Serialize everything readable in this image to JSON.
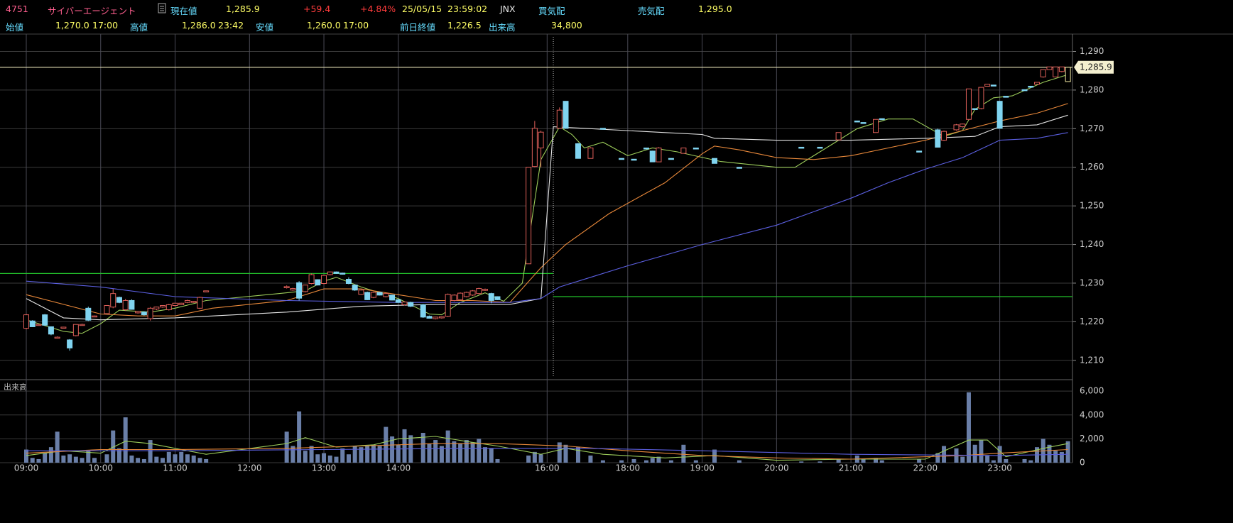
{
  "header": {
    "code": "4751",
    "name": "サイバーエージェント",
    "price_label": "現在値",
    "price": "1,285.9",
    "change": "+59.4",
    "change_pct": "+4.84%",
    "date": "25/05/15",
    "time": "23:59:02",
    "market": "JNX",
    "bid_label": "買気配",
    "ask_label": "売気配",
    "ask": "1,295.0",
    "open_label": "始値",
    "open": "1,270.0",
    "open_time": "17:00",
    "high_label": "高値",
    "high": "1,286.0",
    "high_time": "23:42",
    "low_label": "安値",
    "low": "1,260.0",
    "low_time": "17:00",
    "prev_close_label": "前日終値",
    "prev_close": "1,226.5",
    "volume_label": "出来高",
    "volume": "34,800"
  },
  "chart_data": {
    "type": "candlestick",
    "volume_label": "出来高",
    "up_color": "#e0605a",
    "down_color": "#80d4f0",
    "last_color": "#efe6a0",
    "volume_color": "#6a7fa8",
    "x": [
      "09:00",
      "09:05",
      "09:10",
      "09:15",
      "09:20",
      "09:25",
      "09:30",
      "09:35",
      "09:40",
      "09:45",
      "09:50",
      "09:55",
      "10:05",
      "10:10",
      "10:15",
      "10:20",
      "10:25",
      "10:30",
      "10:35",
      "10:40",
      "10:45",
      "10:50",
      "10:55",
      "11:00",
      "11:05",
      "11:10",
      "11:15",
      "11:20",
      "11:25",
      "12:30",
      "12:35",
      "12:40",
      "12:45",
      "12:50",
      "12:55",
      "13:00",
      "13:05",
      "13:10",
      "13:15",
      "13:20",
      "13:25",
      "13:30",
      "13:35",
      "13:40",
      "13:45",
      "13:50",
      "13:55",
      "14:00",
      "14:05",
      "14:10",
      "14:20",
      "14:25",
      "14:30",
      "14:35",
      "14:40",
      "14:45",
      "14:50",
      "14:55",
      "15:00",
      "15:05",
      "15:10",
      "15:15",
      "15:20",
      "15:45",
      "15:50",
      "15:55",
      "17:05",
      "17:10",
      "17:20",
      "17:30",
      "17:40",
      "17:55",
      "18:05",
      "18:15",
      "18:20",
      "18:25",
      "18:35",
      "18:45",
      "18:55",
      "19:10",
      "19:30",
      "20:20",
      "20:35",
      "20:50",
      "21:05",
      "21:10",
      "21:20",
      "21:25",
      "21:55",
      "22:10",
      "22:15",
      "22:25",
      "22:30",
      "22:35",
      "22:40",
      "22:45",
      "22:50",
      "22:55",
      "23:00",
      "23:05",
      "23:20",
      "23:25",
      "23:30",
      "23:35",
      "23:40",
      "23:45",
      "23:50",
      "23:55"
    ],
    "open": [
      1218.3,
      1220.2,
      1219.1,
      1221.8,
      1218.7,
      1215.9,
      1218.5,
      1215.3,
      1216.4,
      1219.1,
      1223.5,
      1221.4,
      1222.1,
      1223.8,
      1226.3,
      1223.1,
      1225.5,
      1222.3,
      1222.5,
      1220.8,
      1223.3,
      1223.8,
      1223.1,
      1224.2,
      1224.4,
      1225.0,
      1225.0,
      1223.5,
      1227.8,
      1228.8,
      1228.2,
      1230.1,
      1227.8,
      1229.9,
      1230.9,
      1229.9,
      1232.2,
      1232.9,
      1232.6,
      1231.0,
      1229.5,
      1227.1,
      1227.6,
      1226.3,
      1227.6,
      1226.5,
      1226.9,
      1225.7,
      1224.4,
      1225.0,
      1224.4,
      1221.4,
      1220.8,
      1221.0,
      1221.4,
      1225.5,
      1225.7,
      1226.5,
      1226.9,
      1227.3,
      1228.2,
      1227.3,
      1226.5,
      1235.0,
      1260.2,
      1265.0,
      1270.1,
      1277.1,
      1266.1,
      1262.3,
      1270.1,
      1262.3,
      1262.1,
      1265.0,
      1264.2,
      1261.4,
      1262.3,
      1263.6,
      1265.0,
      1262.3,
      1260.0,
      1265.2,
      1265.2,
      1267.1,
      1272.0,
      1271.6,
      1269.0,
      1272.6,
      1264.2,
      1269.7,
      1267.0,
      1269.7,
      1270.5,
      1272.4,
      1275.2,
      1275.2,
      1281.0,
      1281.3,
      1277.1,
      1278.4,
      1280.1,
      1281.0,
      1281.5,
      1283.4,
      1285.3,
      1283.4,
      1284.8,
      1282.2
    ],
    "high": [
      1222.0,
      1220.4,
      1219.5,
      1222.0,
      1218.8,
      1216.2,
      1218.7,
      1215.5,
      1219.3,
      1219.5,
      1223.9,
      1221.6,
      1224.3,
      1228.5,
      1226.5,
      1225.9,
      1225.8,
      1222.8,
      1222.7,
      1223.8,
      1223.9,
      1224.3,
      1224.6,
      1224.9,
      1224.9,
      1225.7,
      1225.4,
      1226.5,
      1228.0,
      1229.4,
      1228.8,
      1230.5,
      1229.6,
      1232.5,
      1231.0,
      1232.2,
      1233.0,
      1233.0,
      1232.7,
      1231.5,
      1229.6,
      1228.4,
      1227.8,
      1227.8,
      1227.7,
      1227.4,
      1227.0,
      1225.9,
      1225.3,
      1225.2,
      1224.6,
      1221.6,
      1221.3,
      1221.4,
      1227.3,
      1227.1,
      1227.6,
      1227.8,
      1228.2,
      1228.8,
      1228.6,
      1227.5,
      1226.6,
      1260.0,
      1272.0,
      1269.5,
      1275.5,
      1277.1,
      1266.3,
      1265.2,
      1270.1,
      1262.3,
      1262.1,
      1265.0,
      1264.3,
      1265.2,
      1262.3,
      1265.0,
      1265.0,
      1262.3,
      1260.0,
      1265.2,
      1265.2,
      1269.0,
      1272.0,
      1271.6,
      1272.4,
      1272.6,
      1264.2,
      1270.0,
      1269.5,
      1271.2,
      1271.3,
      1280.3,
      1275.3,
      1280.7,
      1281.5,
      1281.3,
      1277.1,
      1278.4,
      1280.1,
      1281.0,
      1282.0,
      1285.3,
      1286.0,
      1286.0,
      1286.0,
      1286.0
    ],
    "low": [
      1218.0,
      1218.6,
      1219.0,
      1218.9,
      1216.5,
      1215.7,
      1218.3,
      1212.5,
      1216.2,
      1219.0,
      1220.2,
      1221.2,
      1222.0,
      1223.5,
      1224.8,
      1222.8,
      1223.1,
      1222.1,
      1221.6,
      1220.3,
      1223.0,
      1223.6,
      1222.9,
      1224.0,
      1224.3,
      1224.8,
      1224.9,
      1223.3,
      1227.8,
      1228.6,
      1228.0,
      1225.5,
      1227.6,
      1229.7,
      1229.4,
      1229.7,
      1232.0,
      1232.4,
      1232.2,
      1229.7,
      1228.0,
      1227.0,
      1225.6,
      1226.1,
      1226.8,
      1226.3,
      1225.5,
      1224.9,
      1224.2,
      1223.8,
      1221.0,
      1220.8,
      1220.6,
      1220.8,
      1221.2,
      1225.3,
      1225.5,
      1226.3,
      1226.7,
      1227.1,
      1228.0,
      1224.8,
      1225.6,
      1235.0,
      1260.0,
      1260.0,
      1270.0,
      1270.0,
      1262.3,
      1262.3,
      1270.1,
      1262.3,
      1262.1,
      1265.0,
      1261.4,
      1261.4,
      1262.3,
      1263.6,
      1265.0,
      1261.0,
      1260.0,
      1265.2,
      1265.2,
      1267.1,
      1272.0,
      1271.6,
      1269.0,
      1272.6,
      1264.2,
      1265.2,
      1266.8,
      1269.5,
      1270.3,
      1272.2,
      1275.0,
      1275.0,
      1280.9,
      1281.3,
      1270.1,
      1278.4,
      1280.1,
      1281.0,
      1281.5,
      1283.2,
      1285.3,
      1283.4,
      1284.6,
      1282.2
    ],
    "close": [
      1221.8,
      1218.7,
      1219.3,
      1219.1,
      1216.8,
      1216.0,
      1218.6,
      1213.2,
      1219.3,
      1219.3,
      1220.4,
      1221.5,
      1224.2,
      1227.3,
      1225.0,
      1225.5,
      1223.2,
      1222.7,
      1221.8,
      1223.5,
      1223.8,
      1224.2,
      1224.4,
      1224.8,
      1224.8,
      1225.5,
      1225.3,
      1226.3,
      1228.0,
      1229.1,
      1228.6,
      1226.1,
      1229.5,
      1232.2,
      1229.5,
      1232.0,
      1232.9,
      1232.5,
      1232.3,
      1229.9,
      1228.2,
      1228.2,
      1225.7,
      1227.6,
      1226.9,
      1227.3,
      1225.6,
      1225.0,
      1225.1,
      1224.0,
      1221.2,
      1220.9,
      1221.2,
      1221.3,
      1227.1,
      1226.9,
      1227.4,
      1227.6,
      1228.0,
      1228.6,
      1228.4,
      1225.5,
      1225.7,
      1260.0,
      1270.1,
      1269.1,
      1274.8,
      1270.1,
      1262.3,
      1265.0,
      1270.1,
      1262.3,
      1262.1,
      1265.0,
      1261.4,
      1265.0,
      1262.3,
      1265.0,
      1265.0,
      1261.0,
      1260.0,
      1265.2,
      1265.2,
      1269.0,
      1272.0,
      1271.6,
      1272.4,
      1272.6,
      1264.2,
      1265.2,
      1269.3,
      1271.0,
      1271.2,
      1280.3,
      1275.1,
      1280.7,
      1281.5,
      1281.3,
      1270.1,
      1278.4,
      1280.1,
      1281.0,
      1282.0,
      1285.3,
      1286.0,
      1286.0,
      1286.0,
      1285.9
    ],
    "volume": [
      1100,
      400,
      300,
      800,
      1300,
      2600,
      600,
      700,
      500,
      400,
      1000,
      400,
      700,
      2700,
      1200,
      3800,
      600,
      400,
      300,
      1900,
      500,
      400,
      900,
      700,
      900,
      700,
      600,
      400,
      300,
      2600,
      1400,
      4300,
      1000,
      1400,
      700,
      800,
      600,
      500,
      1200,
      700,
      1400,
      1300,
      1400,
      1500,
      1400,
      3000,
      2200,
      1500,
      2800,
      2300,
      2500,
      1600,
      1900,
      1400,
      2700,
      1800,
      1600,
      1900,
      1700,
      2000,
      1300,
      1200,
      300,
      600,
      900,
      700,
      1700,
      1500,
      1300,
      600,
      200,
      200,
      300,
      200,
      400,
      500,
      200,
      1500,
      200,
      1100,
      200,
      100,
      100,
      300,
      600,
      300,
      400,
      200,
      300,
      800,
      1400,
      1200,
      500,
      5900,
      1500,
      1900,
      600,
      200,
      1400,
      300,
      300,
      200,
      1300,
      2000,
      1500,
      1000,
      900,
      1800
    ],
    "ma_lines": [
      {
        "color": "#9ccc5a",
        "x": [
          "09:00",
          "09:30",
          "09:45",
          "10:00",
          "10:15",
          "10:40",
          "11:00",
          "11:25",
          "12:30",
          "12:45",
          "13:00",
          "13:10",
          "13:30",
          "14:00",
          "14:25",
          "14:35",
          "14:50",
          "15:10",
          "15:20",
          "15:25",
          "15:40",
          "15:55",
          "17:05",
          "17:15",
          "17:25",
          "17:40",
          "18:00",
          "18:20",
          "18:40",
          "19:15",
          "20:00",
          "20:15",
          "20:45",
          "21:05",
          "21:30",
          "21:50",
          "22:15",
          "22:30",
          "22:40",
          "22:55",
          "23:10",
          "23:35",
          "23:55"
        ],
        "values": [
          1220.5,
          1217.5,
          1217,
          1219.5,
          1223,
          1222.5,
          1223.5,
          1225.5,
          1227.5,
          1228,
          1230.5,
          1231.5,
          1229,
          1226,
          1222,
          1221.8,
          1225,
          1227.5,
          1226,
          1225.3,
          1230,
          1262,
          1270.5,
          1268.5,
          1265,
          1266.5,
          1263,
          1265,
          1264,
          1261.5,
          1260,
          1260,
          1266,
          1270,
          1272.5,
          1272.5,
          1268,
          1269.5,
          1275,
          1278,
          1278.5,
          1282,
          1284
        ]
      },
      {
        "color": "#e8883a",
        "x": [
          "09:00",
          "09:30",
          "10:00",
          "10:30",
          "11:00",
          "11:30",
          "12:30",
          "13:00",
          "13:30",
          "14:00",
          "14:30",
          "15:00",
          "15:30",
          "15:55",
          "17:10",
          "17:45",
          "18:30",
          "19:00",
          "19:10",
          "19:30",
          "20:00",
          "20:30",
          "21:00",
          "21:30",
          "22:00",
          "22:30",
          "23:00",
          "23:30",
          "23:55"
        ],
        "values": [
          1227,
          1224.5,
          1222,
          1221.5,
          1221.5,
          1223.5,
          1225.5,
          1228.5,
          1228.5,
          1227,
          1225.5,
          1225.5,
          1225,
          1234,
          1240,
          1248,
          1256,
          1263.5,
          1265.5,
          1264.5,
          1262.5,
          1262,
          1263,
          1265,
          1267,
          1269.5,
          1272,
          1274,
          1276.5
        ]
      },
      {
        "color": "#e4e4e4",
        "x": [
          "09:00",
          "09:30",
          "10:00",
          "11:00",
          "12:30",
          "13:30",
          "14:30",
          "15:30",
          "15:55",
          "17:00",
          "17:30",
          "18:30",
          "19:00",
          "19:10",
          "20:00",
          "21:00",
          "22:00",
          "22:40",
          "23:00",
          "23:30",
          "23:55"
        ],
        "values": [
          1226,
          1221,
          1220.5,
          1221,
          1222.5,
          1224,
          1224.5,
          1224.5,
          1226,
          1270.5,
          1270,
          1269,
          1268.5,
          1267.5,
          1267,
          1267,
          1267.5,
          1268,
          1270.5,
          1271,
          1273.5
        ]
      },
      {
        "color": "#5b5fe0",
        "x": [
          "09:00",
          "10:00",
          "11:00",
          "12:30",
          "14:00",
          "15:30",
          "15:55",
          "17:05",
          "17:30",
          "18:00",
          "19:00",
          "20:00",
          "21:00",
          "21:30",
          "22:00",
          "22:30",
          "23:00",
          "23:30",
          "23:55"
        ],
        "values": [
          1230.5,
          1229,
          1226.5,
          1225.5,
          1225,
          1225,
          1226,
          1229,
          1231.5,
          1234.5,
          1240,
          1245,
          1252,
          1256,
          1259.5,
          1262.5,
          1267,
          1267.5,
          1269
        ]
      }
    ],
    "volume_ma_lines": [
      {
        "color": "#9ccc5a",
        "x": [
          "09:00",
          "09:30",
          "10:00",
          "10:20",
          "10:40",
          "11:00",
          "11:25",
          "12:30",
          "12:45",
          "13:10",
          "13:40",
          "14:00",
          "14:30",
          "15:00",
          "15:20",
          "15:55",
          "17:10",
          "17:40",
          "18:30",
          "19:10",
          "20:00",
          "21:00",
          "22:00",
          "22:35",
          "22:50",
          "23:05",
          "23:40",
          "23:55"
        ],
        "values": [
          600,
          1000,
          800,
          1800,
          1600,
          1200,
          700,
          1600,
          2100,
          1300,
          1500,
          2000,
          2200,
          1700,
          1400,
          700,
          1200,
          700,
          400,
          600,
          200,
          300,
          300,
          1900,
          1900,
          500,
          1300,
          1600
        ]
      },
      {
        "color": "#e8883a",
        "x": [
          "09:00",
          "10:00",
          "11:00",
          "12:30",
          "13:30",
          "14:30",
          "15:20",
          "17:10",
          "18:00",
          "19:00",
          "20:00",
          "21:00",
          "22:30",
          "23:00",
          "23:55"
        ],
        "values": [
          800,
          1100,
          1100,
          1200,
          1400,
          1600,
          1600,
          1400,
          1000,
          600,
          400,
          300,
          600,
          800,
          1100
        ]
      },
      {
        "color": "#5b5fe0",
        "x": [
          "09:00",
          "11:00",
          "13:00",
          "15:00",
          "17:30",
          "19:00",
          "21:00",
          "23:00",
          "23:55"
        ],
        "values": [
          1000,
          1000,
          1100,
          1200,
          1200,
          1000,
          700,
          600,
          700
        ]
      }
    ],
    "reference_lines": [
      {
        "value": 1232.5,
        "color": "#22c02b",
        "to": "17:00"
      },
      {
        "value": 1226.5,
        "color": "#22c02b",
        "from": "17:00"
      },
      {
        "value": 1285.9,
        "color": "#e8e2b8",
        "label": "1,285.9"
      }
    ],
    "session_break": "17:00",
    "ylim": [
      1205,
      1294.5
    ],
    "yticks": [
      {
        "value": 1210,
        "label": "1,210"
      },
      {
        "value": 1220,
        "label": "1,220"
      },
      {
        "value": 1230,
        "label": "1,230"
      },
      {
        "value": 1240,
        "label": "1,240"
      },
      {
        "value": 1250,
        "label": "1,250"
      },
      {
        "value": 1260,
        "label": "1,260"
      },
      {
        "value": 1270,
        "label": "1,270"
      },
      {
        "value": 1280,
        "label": "1,280"
      },
      {
        "value": 1290,
        "label": "1,290"
      }
    ],
    "vlim": [
      0,
      6900
    ],
    "vticks": [
      0,
      {
        "value": 2000,
        "label": "2,000"
      },
      {
        "value": 4000,
        "label": "4,000"
      },
      {
        "value": 6000,
        "label": "6,000"
      }
    ],
    "xticks": [
      "09:00",
      "10:00",
      "11:00",
      "12:00",
      "13:00",
      "14:00",
      "16:00",
      "18:00",
      "19:00",
      "20:00",
      "21:00",
      "22:00",
      "23:00"
    ],
    "grid": true
  }
}
